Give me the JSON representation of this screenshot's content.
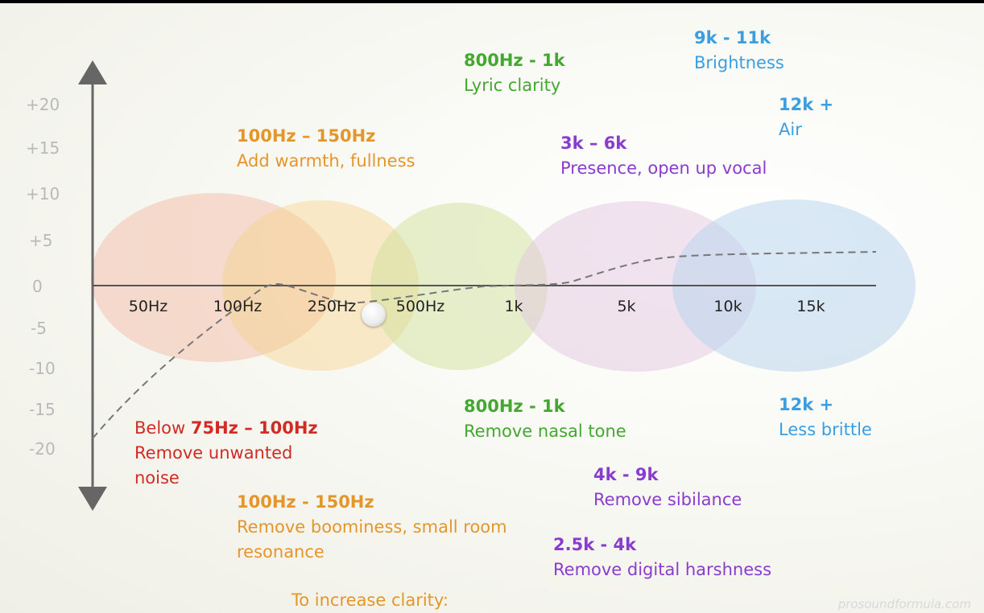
{
  "y_ticks": [
    "+20",
    "+15",
    "+10",
    "+5",
    "0",
    "-5",
    "-10",
    "-15",
    "-20"
  ],
  "x_ticks": [
    "50Hz",
    "100Hz",
    "250Hz",
    "500Hz",
    "1k",
    "5k",
    "10k",
    "15k"
  ],
  "colors": {
    "orange": "#e5962a",
    "green": "#43a82f",
    "purple": "#8a3ccf",
    "blue": "#3a9ee0",
    "red": "#d12b24"
  },
  "boosts": {
    "warmth": {
      "range": "100Hz – 150Hz",
      "desc": "Add warmth, fullness"
    },
    "lyric": {
      "range": "800Hz - 1k",
      "desc": "Lyric clarity"
    },
    "presence": {
      "range": "3k – 6k",
      "desc": "Presence, open up vocal"
    },
    "brightness": {
      "range": "9k - 11k",
      "desc": "Brightness"
    },
    "air": {
      "range": "12k +",
      "desc": "Air"
    }
  },
  "cuts": {
    "noise": {
      "prefix": "Below ",
      "range": "75Hz – 100Hz",
      "desc_line1": "Remove unwanted",
      "desc_line2": "noise"
    },
    "boominess": {
      "range": "100Hz - 150Hz",
      "desc_line1": "Remove boominess, small room",
      "desc_line2": "resonance"
    },
    "nasal": {
      "range": "800Hz - 1k",
      "desc": "Remove nasal tone"
    },
    "sibilance": {
      "range": "4k - 9k",
      "desc": "Remove sibilance"
    },
    "harshness": {
      "range": "2.5k - 4k",
      "desc": "Remove digital harshness"
    },
    "brittle": {
      "range": "12k +",
      "desc": "Less brittle"
    }
  },
  "footer": "To increase clarity:",
  "watermark": "prosoundformula.com"
}
